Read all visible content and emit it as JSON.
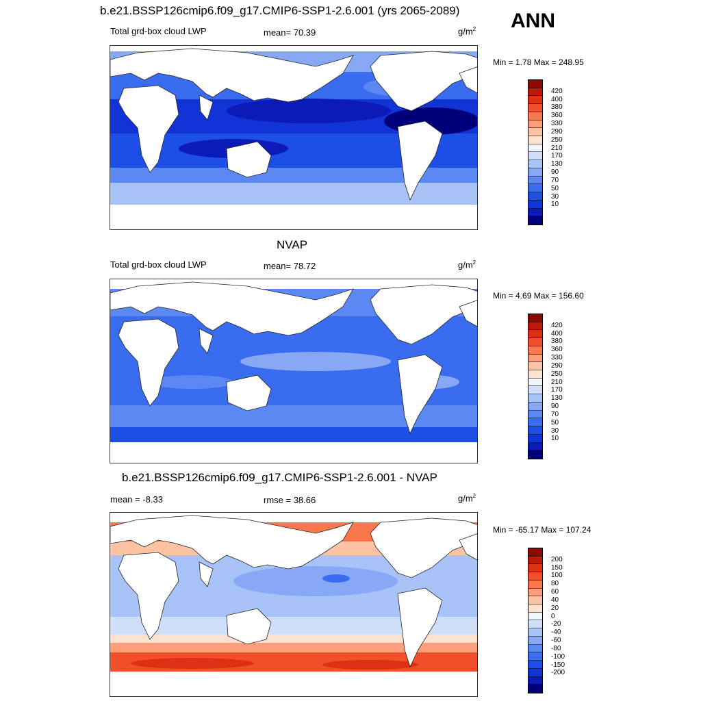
{
  "season": "ANN",
  "colors": {
    "lwp": [
      "#00007a",
      "#0c1ab8",
      "#1233d6",
      "#1d4fe6",
      "#3a6cef",
      "#5b88f2",
      "#87a9f5",
      "#a8c3f7",
      "#cfdffa",
      "#f0f5fe",
      "#fde1cf",
      "#fcc3a4",
      "#fb9e79",
      "#f9774d",
      "#f2502a",
      "#dd3014",
      "#bc1909",
      "#8c0a00"
    ],
    "diff": [
      "#00007a",
      "#0c1ab8",
      "#1233d6",
      "#1d4fe6",
      "#3a6cef",
      "#5b88f2",
      "#87a9f5",
      "#a8c3f7",
      "#cfdffa",
      "#f0f5fe",
      "#fde1cf",
      "#fcc3a4",
      "#fb9e79",
      "#f9774d",
      "#f2502a",
      "#dd3014",
      "#bc1909",
      "#8c0a00"
    ]
  },
  "panels": [
    {
      "title": "b.e21.BSSP126cmip6.f09_g17.CMIP6-SSP1-2.6.001 (yrs 2065-2089)",
      "left_label": "Total grd-box cloud LWP",
      "stat_label": "mean=  70.39",
      "units_base": "g/m",
      "units_exp": "2",
      "minmax": "Min =   1.78 Max = 248.95",
      "ticks": [
        "420",
        "400",
        "380",
        "360",
        "330",
        "290",
        "250",
        "210",
        "170",
        "130",
        "90",
        "70",
        "50",
        "30",
        "10"
      ],
      "field": "model"
    },
    {
      "title": "NVAP",
      "left_label": "Total grd-box cloud LWP",
      "stat_label": "mean=  78.72",
      "units_base": "g/m",
      "units_exp": "2",
      "minmax": "Min =   4.69 Max = 156.60",
      "ticks": [
        "420",
        "400",
        "380",
        "360",
        "330",
        "290",
        "250",
        "210",
        "170",
        "130",
        "90",
        "70",
        "50",
        "30",
        "10"
      ],
      "field": "obs"
    },
    {
      "title": "b.e21.BSSP126cmip6.f09_g17.CMIP6-SSP1-2.6.001 - NVAP",
      "left_label": "mean =  -8.33",
      "stat_label": "rmse =  38.66",
      "units_base": "g/m",
      "units_exp": "2",
      "minmax": "Min = -65.17 Max = 107.24",
      "ticks": [
        "200",
        "150",
        "100",
        "80",
        "60",
        "40",
        "20",
        "0",
        "-20",
        "-40",
        "-60",
        "-80",
        "-100",
        "-150",
        "-200"
      ],
      "field": "diff"
    }
  ]
}
